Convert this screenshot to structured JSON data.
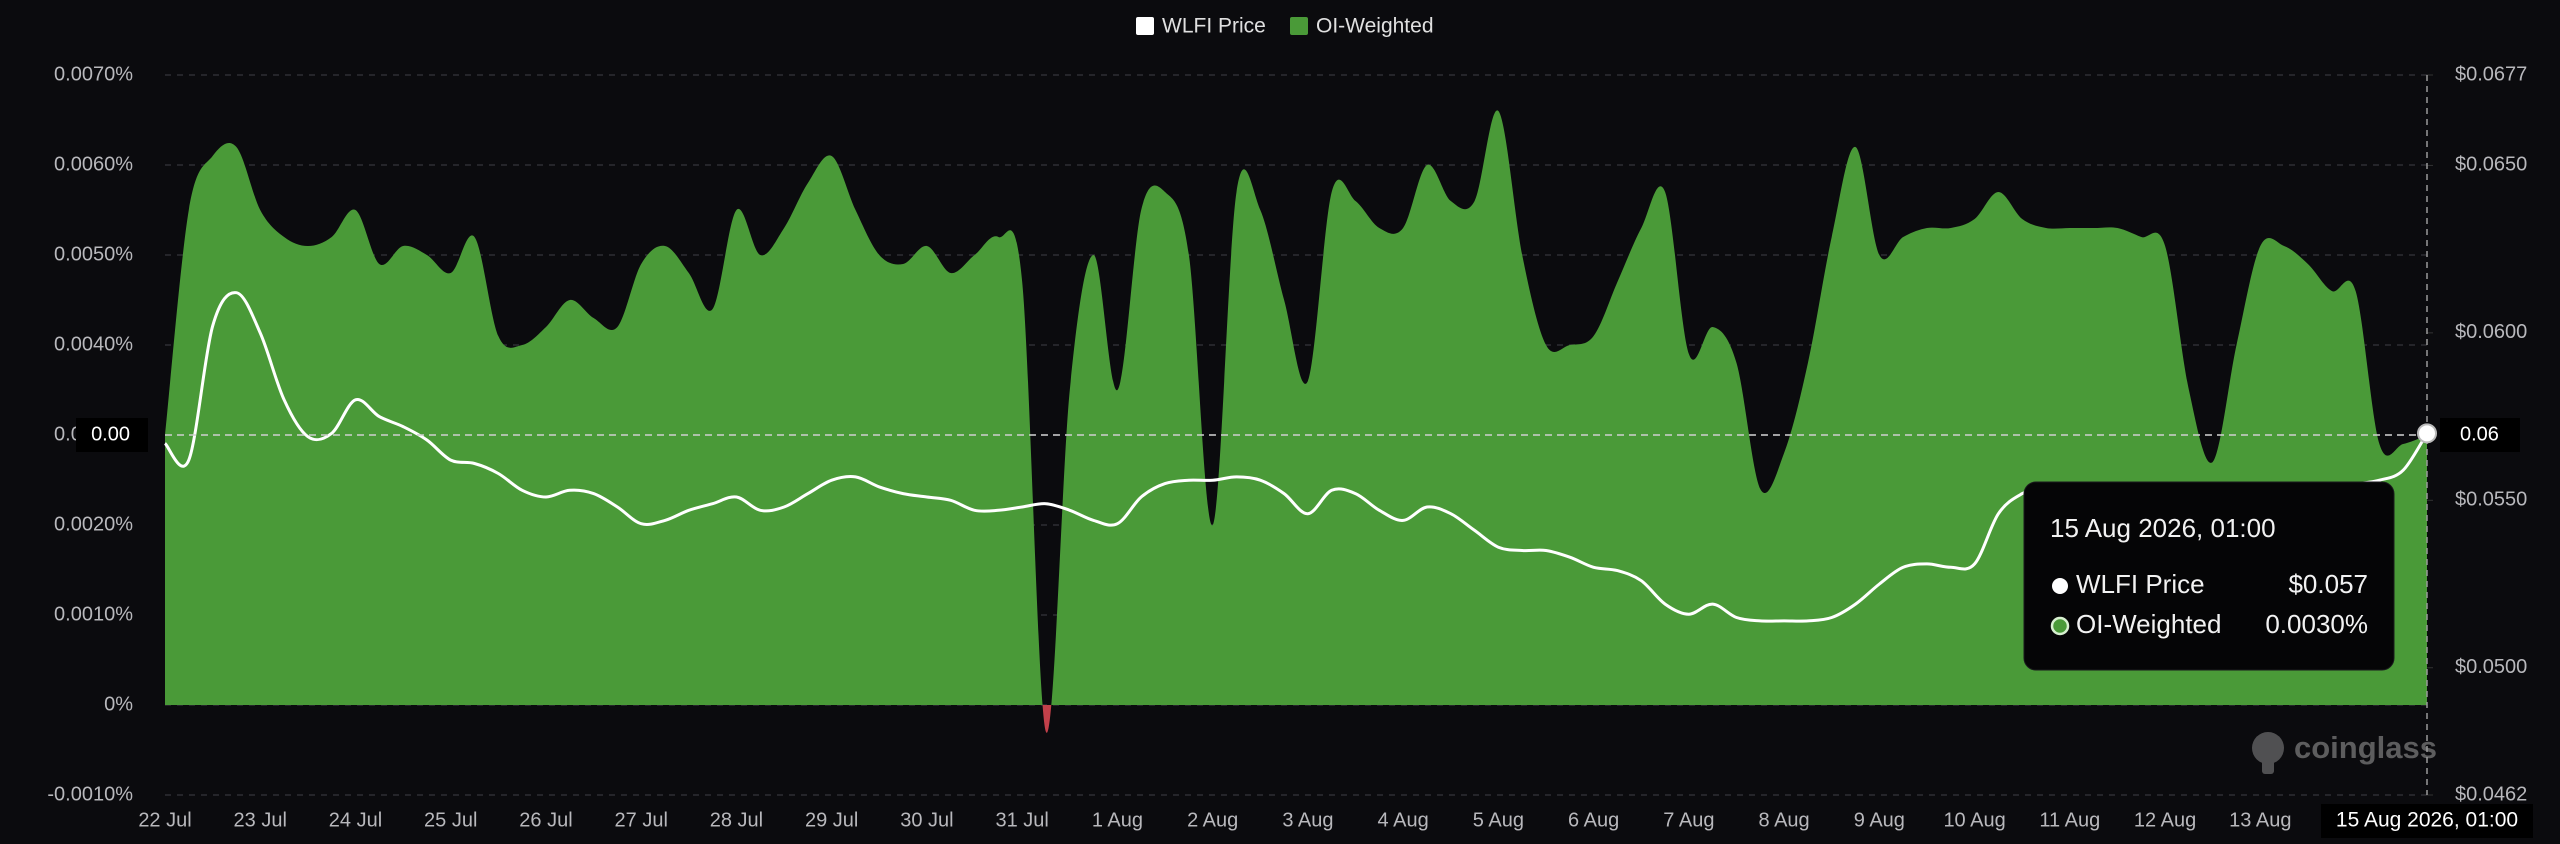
{
  "chart_data": {
    "type": "area-line",
    "categories": [
      "22 Jul",
      null,
      null,
      null,
      "23 Jul",
      null,
      null,
      null,
      "24 Jul",
      null,
      null,
      null,
      "25 Jul",
      null,
      null,
      null,
      "26 Jul",
      null,
      null,
      null,
      "27 Jul",
      null,
      null,
      null,
      "28 Jul",
      null,
      null,
      null,
      "29 Jul",
      null,
      null,
      null,
      "30 Jul",
      null,
      null,
      null,
      "31 Jul",
      null,
      null,
      null,
      "1 Aug",
      null,
      null,
      null,
      "2 Aug",
      null,
      null,
      null,
      "3 Aug",
      null,
      null,
      null,
      "4 Aug",
      null,
      null,
      null,
      "5 Aug",
      null,
      null,
      null,
      "6 Aug",
      null,
      null,
      null,
      "7 Aug",
      null,
      null,
      null,
      "8 Aug",
      null,
      null,
      null,
      "9 Aug",
      null,
      null,
      null,
      "10 Aug",
      null,
      null,
      null,
      "11 Aug",
      null,
      null,
      null,
      "12 Aug",
      null,
      null,
      null,
      "13 Aug",
      null,
      null,
      null,
      null,
      null,
      null,
      "15 Aug 2026, 01:00"
    ],
    "series": [
      {
        "name": "WLFI Price",
        "color": "#ffffff",
        "axis": "y2",
        "values": [
          0.0567,
          0.0562,
          0.0602,
          0.0612,
          0.06,
          0.058,
          0.0569,
          0.057,
          0.058,
          0.0575,
          0.0572,
          0.0568,
          0.0562,
          0.0561,
          0.0558,
          0.0553,
          0.0551,
          0.0553,
          0.0552,
          0.0548,
          0.0543,
          0.0544,
          0.0547,
          0.0549,
          0.0551,
          0.0547,
          0.0548,
          0.0552,
          0.0556,
          0.0557,
          0.0554,
          0.0552,
          0.0551,
          0.055,
          0.0547,
          0.0547,
          0.0548,
          0.0549,
          0.0547,
          0.0544,
          0.0543,
          0.0551,
          0.0555,
          0.0556,
          0.0556,
          0.0557,
          0.0556,
          0.0552,
          0.0546,
          0.0553,
          0.0552,
          0.0547,
          0.0544,
          0.0548,
          0.0546,
          0.0541,
          0.0536,
          0.0535,
          0.0535,
          0.0533,
          0.053,
          0.0529,
          0.0526,
          0.0519,
          0.0516,
          0.0519,
          0.0515,
          0.0514,
          0.0514,
          0.0514,
          0.0515,
          0.0519,
          0.0525,
          0.053,
          0.0531,
          0.053,
          0.0531,
          0.0546,
          0.0552,
          0.0554,
          0.0554,
          0.0554,
          0.0554,
          0.0554,
          0.0554,
          0.0555,
          0.0555,
          0.0555,
          0.0555,
          0.0555,
          0.0555,
          0.0555,
          0.0555,
          0.0556,
          0.0559,
          0.057
        ],
        "value_labels": [
          null,
          null,
          null,
          null,
          null,
          null,
          null,
          null,
          null,
          null,
          null,
          null,
          null,
          null,
          null,
          null,
          null,
          null,
          null,
          null,
          null,
          null,
          null,
          null,
          null,
          null,
          null,
          null,
          null,
          null,
          null,
          null,
          null,
          null,
          null,
          null,
          null,
          null,
          null,
          null,
          null,
          null,
          null,
          null,
          null,
          null,
          null,
          null,
          null,
          null,
          null,
          null,
          null,
          null,
          null,
          null,
          null,
          null,
          null,
          null,
          null,
          null,
          null,
          null,
          null,
          null,
          null,
          null,
          null,
          null,
          null,
          null,
          null,
          null,
          null,
          null,
          null,
          null,
          null,
          null,
          null,
          null,
          null,
          null,
          null,
          null,
          null,
          null,
          null,
          null,
          null,
          null,
          null,
          null,
          null,
          "$0.057"
        ]
      },
      {
        "name": "OI-Weighted",
        "color": "#4a9a38",
        "negative_color": "#c2404a",
        "values": [
          0.003,
          0.0055,
          0.0061,
          0.0062,
          0.0055,
          0.0052,
          0.0051,
          0.0052,
          0.0055,
          0.0049,
          0.0051,
          0.005,
          0.0048,
          0.0052,
          0.0041,
          0.004,
          0.0042,
          0.0045,
          0.0043,
          0.0042,
          0.0049,
          0.0051,
          0.0048,
          0.0044,
          0.0055,
          0.005,
          0.0053,
          0.0058,
          0.0061,
          0.0055,
          0.005,
          0.0049,
          0.0051,
          0.0048,
          0.005,
          0.0052,
          0.0047,
          -0.0003,
          0.0035,
          0.005,
          0.0035,
          0.0055,
          0.0057,
          0.005,
          0.002,
          0.0057,
          0.0055,
          0.0045,
          0.0036,
          0.0057,
          0.0056,
          0.0053,
          0.0053,
          0.006,
          0.0056,
          0.0056,
          0.0066,
          0.005,
          0.004,
          0.004,
          0.0041,
          0.0047,
          0.0053,
          0.0057,
          0.0039,
          0.0042,
          0.0038,
          0.0024,
          0.0028,
          0.0038,
          0.0052,
          0.0062,
          0.005,
          0.0052,
          0.0053,
          0.0053,
          0.0054,
          0.0057,
          0.0054,
          0.0053,
          0.0053,
          0.0053,
          0.0053,
          0.0052,
          0.0051,
          0.0035,
          0.0027,
          0.004,
          0.0051,
          0.0051,
          0.0049,
          0.0046,
          0.0046,
          0.0029,
          0.0029,
          0.003
        ],
        "value_labels": [
          null,
          null,
          null,
          null,
          null,
          null,
          null,
          null,
          null,
          null,
          null,
          null,
          null,
          null,
          null,
          null,
          null,
          null,
          null,
          null,
          null,
          null,
          null,
          null,
          null,
          null,
          null,
          null,
          null,
          null,
          null,
          null,
          null,
          null,
          null,
          null,
          null,
          null,
          null,
          null,
          null,
          null,
          null,
          null,
          null,
          null,
          null,
          null,
          null,
          null,
          null,
          null,
          null,
          null,
          null,
          null,
          null,
          null,
          null,
          null,
          null,
          null,
          null,
          null,
          null,
          null,
          null,
          null,
          null,
          null,
          null,
          null,
          null,
          null,
          null,
          null,
          null,
          null,
          null,
          null,
          null,
          null,
          null,
          null,
          null,
          null,
          null,
          null,
          null,
          null,
          null,
          null,
          null,
          null,
          null,
          "0.0030%"
        ]
      }
    ],
    "ylim": [
      -0.001,
      0.007
    ],
    "yticks": [
      {
        "value": 0.007,
        "label": "0.0070%"
      },
      {
        "value": 0.006,
        "label": "0.0060%"
      },
      {
        "value": 0.005,
        "label": "0.0050%"
      },
      {
        "value": 0.004,
        "label": "0.0040%"
      },
      {
        "value": 0.003,
        "label": "0.0030%"
      },
      {
        "value": 0.002,
        "label": "0.0020%"
      },
      {
        "value": 0.001,
        "label": "0.0010%"
      },
      {
        "value": 0,
        "label": "0%"
      },
      {
        "value": -0.001,
        "label": "-0.0010%"
      }
    ],
    "y2lim": [
      0.0462,
      0.0677
    ],
    "y2ticks": [
      {
        "value": 0.0677,
        "label": "$0.0677"
      },
      {
        "value": 0.065,
        "label": "$0.0650"
      },
      {
        "value": 0.06,
        "label": "$0.0600"
      },
      {
        "value": 0.055,
        "label": "$0.0550"
      },
      {
        "value": 0.05,
        "label": "$0.0500"
      },
      {
        "value": 0.0462,
        "label": "$0.0462"
      }
    ],
    "grid": true,
    "legend": "top",
    "crosshair_labels": {
      "y": "0.00",
      "y2": "0.06"
    },
    "watermark": "coinglass"
  }
}
